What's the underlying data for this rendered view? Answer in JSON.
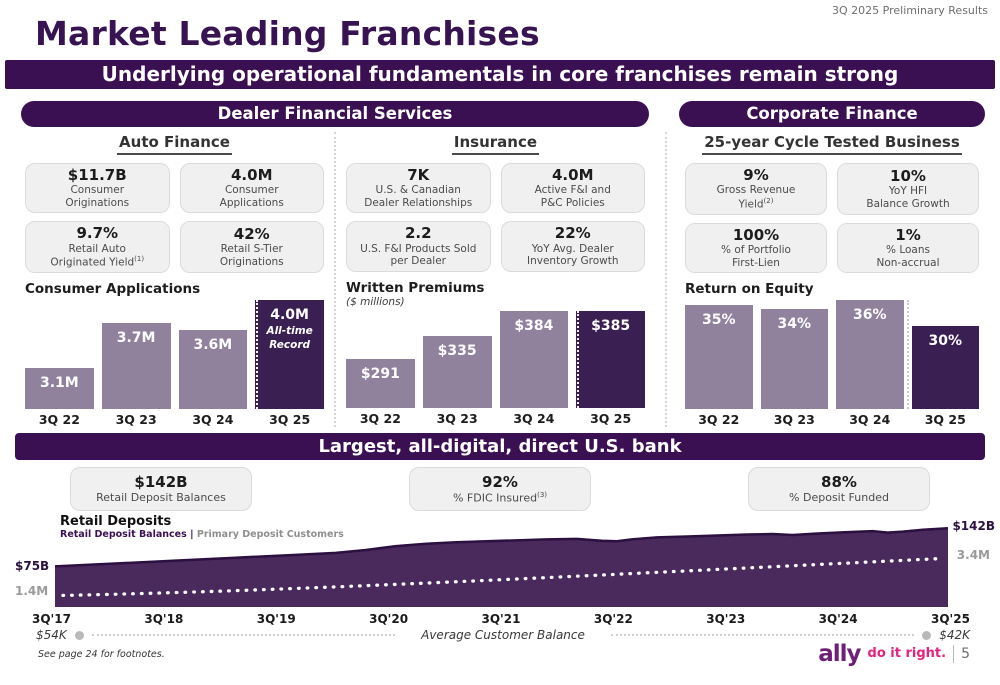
{
  "meta": {
    "top_right_note": "3Q 2025 Preliminary Results",
    "footnote": "See page 24 for footnotes.",
    "page_number": "5",
    "logo_text": "ally",
    "logo_tagline": "do it right."
  },
  "colors": {
    "plum_banner": "#3b1053",
    "bar_light": "#90819d",
    "bar_dark": "#3a1f52",
    "area_fill": "#4a2a5d",
    "area_stroke": "#2c1040",
    "logo_purple": "#6e2077",
    "tagline_pink": "#e5227d"
  },
  "header": {
    "title": "Market Leading Franchises",
    "banner": "Underlying operational fundamentals in core franchises remain strong"
  },
  "sections": {
    "dfs": {
      "title": "Dealer Financial Services",
      "auto": {
        "title": "Auto Finance",
        "cards": [
          {
            "value": "$11.7B",
            "label": "Consumer\nOriginations"
          },
          {
            "value": "4.0M",
            "label": "Consumer\nApplications"
          },
          {
            "value": "9.7%",
            "label": "Retail Auto\nOriginated Yield",
            "sup": "(1)"
          },
          {
            "value": "42%",
            "label": "Retail S-Tier\nOriginations"
          }
        ]
      },
      "insurance": {
        "title": "Insurance",
        "cards": [
          {
            "value": "7K",
            "label": "U.S. & Canadian\nDealer Relationships"
          },
          {
            "value": "4.0M",
            "label": "Active F&I and\nP&C Policies"
          },
          {
            "value": "2.2",
            "label": "U.S. F&I Products Sold\nper Dealer"
          },
          {
            "value": "22%",
            "label": "YoY Avg. Dealer\nInventory Growth"
          }
        ]
      }
    },
    "corporate": {
      "title": "Corporate Finance",
      "subtitle": "25-year Cycle Tested Business",
      "cards": [
        {
          "value": "9%",
          "label": "Gross Revenue\nYield",
          "sup": "(2)"
        },
        {
          "value": "10%",
          "label": "YoY HFI\nBalance Growth"
        },
        {
          "value": "100%",
          "label": "% of Portfolio\nFirst-Lien"
        },
        {
          "value": "1%",
          "label": "% Loans\nNon-accrual"
        }
      ]
    }
  },
  "bank": {
    "banner": "Largest, all-digital, direct U.S. bank",
    "cards": [
      {
        "value": "$142B",
        "label": "Retail Deposit Balances"
      },
      {
        "value": "92%",
        "label": "% FDIC Insured",
        "sup": "(3)"
      },
      {
        "value": "88%",
        "label": "% Deposit Funded"
      }
    ]
  },
  "deposits": {
    "title": "Retail Deposits",
    "legend_primary": "Retail Deposit Balances",
    "legend_separator": "|",
    "legend_secondary": "Primary Deposit Customers",
    "left_value": "$75B",
    "left_sub": "1.4M",
    "right_value": "$142B",
    "right_sub": "3.4M",
    "avg_left": "$54K",
    "avg_label": "Average Customer Balance",
    "avg_right": "$42K"
  },
  "chart_data": [
    {
      "type": "bar",
      "title": "Consumer Applications",
      "subtitle": "",
      "categories": [
        "3Q 22",
        "3Q 23",
        "3Q 24",
        "3Q 25"
      ],
      "values": [
        3.1,
        3.7,
        3.6,
        4.0
      ],
      "labels": [
        "3.1M",
        "3.7M",
        "3.6M",
        "4.0M"
      ],
      "unit": "millions of applications",
      "ylim": [
        2.55,
        4.0
      ],
      "highlight_index": 3,
      "annotation": "All-time\nRecord"
    },
    {
      "type": "bar",
      "title": "Written Premiums",
      "subtitle": "($ millions)",
      "categories": [
        "3Q 22",
        "3Q 23",
        "3Q 24",
        "3Q 25"
      ],
      "values": [
        291,
        335,
        384,
        385
      ],
      "labels": [
        "$291",
        "$335",
        "$384",
        "$385"
      ],
      "unit": "$ millions",
      "ylim": [
        195,
        385
      ],
      "highlight_index": 3,
      "annotation": ""
    },
    {
      "type": "bar",
      "title": "Return on Equity",
      "subtitle": "",
      "categories": [
        "3Q 22",
        "3Q 23",
        "3Q 24",
        "3Q 25"
      ],
      "values": [
        35,
        34,
        36,
        30
      ],
      "labels": [
        "35%",
        "34%",
        "36%",
        "30%"
      ],
      "unit": "percent",
      "ylim": [
        10,
        36
      ],
      "highlight_index": 3,
      "annotation": ""
    },
    {
      "type": "area",
      "title": "Retail Deposits",
      "x": [
        "3Q'17",
        "3Q'18",
        "3Q'19",
        "3Q'20",
        "3Q'21",
        "3Q'22",
        "3Q'23",
        "3Q'24",
        "3Q'25"
      ],
      "series": [
        {
          "name": "Retail Deposit Balances ($B)",
          "values": [
            75,
            85,
            94,
            114,
            121,
            125,
            130,
            135,
            142
          ]
        },
        {
          "name": "Primary Deposit Customers (M)",
          "values": [
            1.4,
            1.65,
            1.9,
            2.15,
            2.4,
            2.65,
            2.9,
            3.15,
            3.4
          ]
        },
        {
          "name": "Average Customer Balance",
          "start": "$54K",
          "end": "$42K"
        }
      ],
      "legend_position": "top-left",
      "grid": false
    }
  ]
}
